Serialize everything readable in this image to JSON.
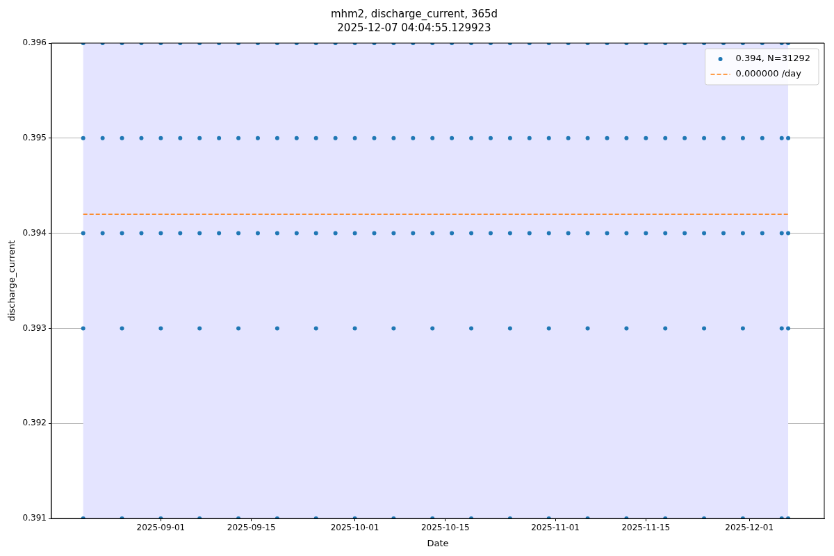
{
  "chart_data": {
    "type": "scatter",
    "title": "mhm2, discharge_current, 365d",
    "subtitle": "2025-12-07 04:04:55.129923",
    "xlabel": "Date",
    "ylabel": "discharge_current",
    "xlim": [
      "2025-08-15T02:00",
      "2025-12-12T14:00"
    ],
    "xticks": [
      "2025-09-01",
      "2025-09-15",
      "2025-10-01",
      "2025-10-15",
      "2025-11-01",
      "2025-11-15",
      "2025-12-01"
    ],
    "ylim": [
      0.391,
      0.396
    ],
    "yticks": [
      0.391,
      0.392,
      0.393,
      0.394,
      0.395,
      0.396
    ],
    "grid": true,
    "legend": "top right",
    "bands": [
      {
        "axis": "x",
        "from": "2025-08-20",
        "to": "2025-12-07",
        "color": "#e4e4ff"
      }
    ],
    "series": [
      {
        "name": "0.394, N=31292",
        "marker": "circle",
        "color": "#1f77b4",
        "x": [
          "2025-08-20",
          "2025-08-23",
          "2025-08-26",
          "2025-08-29",
          "2025-09-01",
          "2025-09-04",
          "2025-09-07",
          "2025-09-10",
          "2025-09-13",
          "2025-09-16",
          "2025-09-19",
          "2025-09-22",
          "2025-09-25",
          "2025-09-28",
          "2025-10-01",
          "2025-10-04",
          "2025-10-07",
          "2025-10-10",
          "2025-10-13",
          "2025-10-16",
          "2025-10-19",
          "2025-10-22",
          "2025-10-25",
          "2025-10-28",
          "2025-10-31",
          "2025-11-03",
          "2025-11-06",
          "2025-11-09",
          "2025-11-12",
          "2025-11-15",
          "2025-11-18",
          "2025-11-21",
          "2025-11-24",
          "2025-11-27",
          "2025-11-30",
          "2025-12-03",
          "2025-12-06",
          "2025-12-07",
          "2025-08-20",
          "2025-08-23",
          "2025-08-26",
          "2025-08-29",
          "2025-09-01",
          "2025-09-04",
          "2025-09-07",
          "2025-09-10",
          "2025-09-13",
          "2025-09-16",
          "2025-09-19",
          "2025-09-22",
          "2025-09-25",
          "2025-09-28",
          "2025-10-01",
          "2025-10-04",
          "2025-10-07",
          "2025-10-10",
          "2025-10-13",
          "2025-10-16",
          "2025-10-19",
          "2025-10-22",
          "2025-10-25",
          "2025-10-28",
          "2025-10-31",
          "2025-11-03",
          "2025-11-06",
          "2025-11-09",
          "2025-11-12",
          "2025-11-15",
          "2025-11-18",
          "2025-11-21",
          "2025-11-24",
          "2025-11-27",
          "2025-11-30",
          "2025-12-03",
          "2025-12-06",
          "2025-12-07",
          "2025-08-20",
          "2025-08-23",
          "2025-08-26",
          "2025-08-29",
          "2025-09-01",
          "2025-09-04",
          "2025-09-07",
          "2025-09-10",
          "2025-09-13",
          "2025-09-16",
          "2025-09-19",
          "2025-09-22",
          "2025-09-25",
          "2025-09-28",
          "2025-10-01",
          "2025-10-04",
          "2025-10-07",
          "2025-10-10",
          "2025-10-13",
          "2025-10-16",
          "2025-10-19",
          "2025-10-22",
          "2025-10-25",
          "2025-10-28",
          "2025-10-31",
          "2025-11-03",
          "2025-11-06",
          "2025-11-09",
          "2025-11-12",
          "2025-11-15",
          "2025-11-18",
          "2025-11-21",
          "2025-11-24",
          "2025-11-27",
          "2025-11-30",
          "2025-12-03",
          "2025-12-06",
          "2025-12-07",
          "2025-08-20",
          "2025-08-26",
          "2025-09-01",
          "2025-09-07",
          "2025-09-13",
          "2025-09-19",
          "2025-09-25",
          "2025-10-01",
          "2025-10-07",
          "2025-10-13",
          "2025-10-19",
          "2025-10-25",
          "2025-10-31",
          "2025-11-06",
          "2025-11-12",
          "2025-11-18",
          "2025-11-24",
          "2025-11-30",
          "2025-12-06",
          "2025-12-07",
          "2025-08-20",
          "2025-08-26",
          "2025-09-01",
          "2025-09-07",
          "2025-09-13",
          "2025-09-19",
          "2025-09-25",
          "2025-10-01",
          "2025-10-07",
          "2025-10-13",
          "2025-10-19",
          "2025-10-25",
          "2025-10-31",
          "2025-11-06",
          "2025-11-12",
          "2025-11-18",
          "2025-11-24",
          "2025-11-30",
          "2025-12-06",
          "2025-12-07"
        ],
        "values": [
          0.396,
          0.396,
          0.396,
          0.396,
          0.396,
          0.396,
          0.396,
          0.396,
          0.396,
          0.396,
          0.396,
          0.396,
          0.396,
          0.396,
          0.396,
          0.396,
          0.396,
          0.396,
          0.396,
          0.396,
          0.396,
          0.396,
          0.396,
          0.396,
          0.396,
          0.396,
          0.396,
          0.396,
          0.396,
          0.396,
          0.396,
          0.396,
          0.396,
          0.396,
          0.396,
          0.396,
          0.396,
          0.396,
          0.395,
          0.395,
          0.395,
          0.395,
          0.395,
          0.395,
          0.395,
          0.395,
          0.395,
          0.395,
          0.395,
          0.395,
          0.395,
          0.395,
          0.395,
          0.395,
          0.395,
          0.395,
          0.395,
          0.395,
          0.395,
          0.395,
          0.395,
          0.395,
          0.395,
          0.395,
          0.395,
          0.395,
          0.395,
          0.395,
          0.395,
          0.395,
          0.395,
          0.395,
          0.395,
          0.395,
          0.395,
          0.395,
          0.394,
          0.394,
          0.394,
          0.394,
          0.394,
          0.394,
          0.394,
          0.394,
          0.394,
          0.394,
          0.394,
          0.394,
          0.394,
          0.394,
          0.394,
          0.394,
          0.394,
          0.394,
          0.394,
          0.394,
          0.394,
          0.394,
          0.394,
          0.394,
          0.394,
          0.394,
          0.394,
          0.394,
          0.394,
          0.394,
          0.394,
          0.394,
          0.394,
          0.394,
          0.394,
          0.394,
          0.394,
          0.394,
          0.393,
          0.393,
          0.393,
          0.393,
          0.393,
          0.393,
          0.393,
          0.393,
          0.393,
          0.393,
          0.393,
          0.393,
          0.393,
          0.393,
          0.393,
          0.393,
          0.393,
          0.393,
          0.393,
          0.393,
          0.391,
          0.391,
          0.391,
          0.391,
          0.391,
          0.391,
          0.391,
          0.391,
          0.391,
          0.391,
          0.391,
          0.391,
          0.391,
          0.391,
          0.391,
          0.391,
          0.391,
          0.391,
          0.391,
          0.391
        ]
      },
      {
        "name": "0.000000 /day",
        "type": "line",
        "color": "#ff7f0e",
        "line_style": "dashed",
        "marker": "none",
        "x": [
          "2025-08-20",
          "2025-12-07"
        ],
        "values": [
          0.3942,
          0.3942
        ]
      }
    ]
  }
}
